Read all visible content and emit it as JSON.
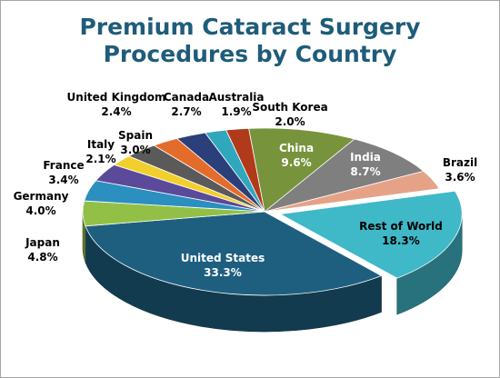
{
  "title_lines": [
    "Premium Cataract Surgery",
    "Procedures by Country"
  ],
  "chart_data": {
    "type": "pie",
    "title": "Premium Cataract Surgery Procedures by Country",
    "slices": [
      {
        "name": "China",
        "value": 9.6,
        "label": "9.6%",
        "color": "#77933c"
      },
      {
        "name": "India",
        "value": 8.7,
        "label": "8.7%",
        "color": "#7f7f7f"
      },
      {
        "name": "Brazil",
        "value": 3.6,
        "label": "3.6%",
        "color": "#e6a287"
      },
      {
        "name": "Rest of World",
        "value": 18.3,
        "label": "18.3%",
        "color": "#3fb8c8"
      },
      {
        "name": "United States",
        "value": 33.3,
        "label": "33.3%",
        "color": "#1e5f80"
      },
      {
        "name": "Japan",
        "value": 4.8,
        "label": "4.8%",
        "color": "#92c047"
      },
      {
        "name": "Germany",
        "value": 4.0,
        "label": "4.0%",
        "color": "#2b8fbf"
      },
      {
        "name": "France",
        "value": 3.4,
        "label": "3.4%",
        "color": "#5b4a9a"
      },
      {
        "name": "Italy",
        "value": 2.1,
        "label": "2.1%",
        "color": "#f2cf2c"
      },
      {
        "name": "Spain",
        "value": 3.0,
        "label": "3.0%",
        "color": "#5a5a5a"
      },
      {
        "name": "United Kingdom",
        "value": 2.4,
        "label": "2.4%",
        "color": "#e46c2a"
      },
      {
        "name": "Canada",
        "value": 2.7,
        "label": "2.7%",
        "color": "#2b3f7a"
      },
      {
        "name": "Australia",
        "value": 1.9,
        "label": "1.9%",
        "color": "#30a7bd"
      },
      {
        "name": "South Korea",
        "value": 2.0,
        "label": "2.0%",
        "color": "#b03a1a"
      }
    ],
    "legend": "none",
    "exploded_slice": "Rest of World"
  }
}
